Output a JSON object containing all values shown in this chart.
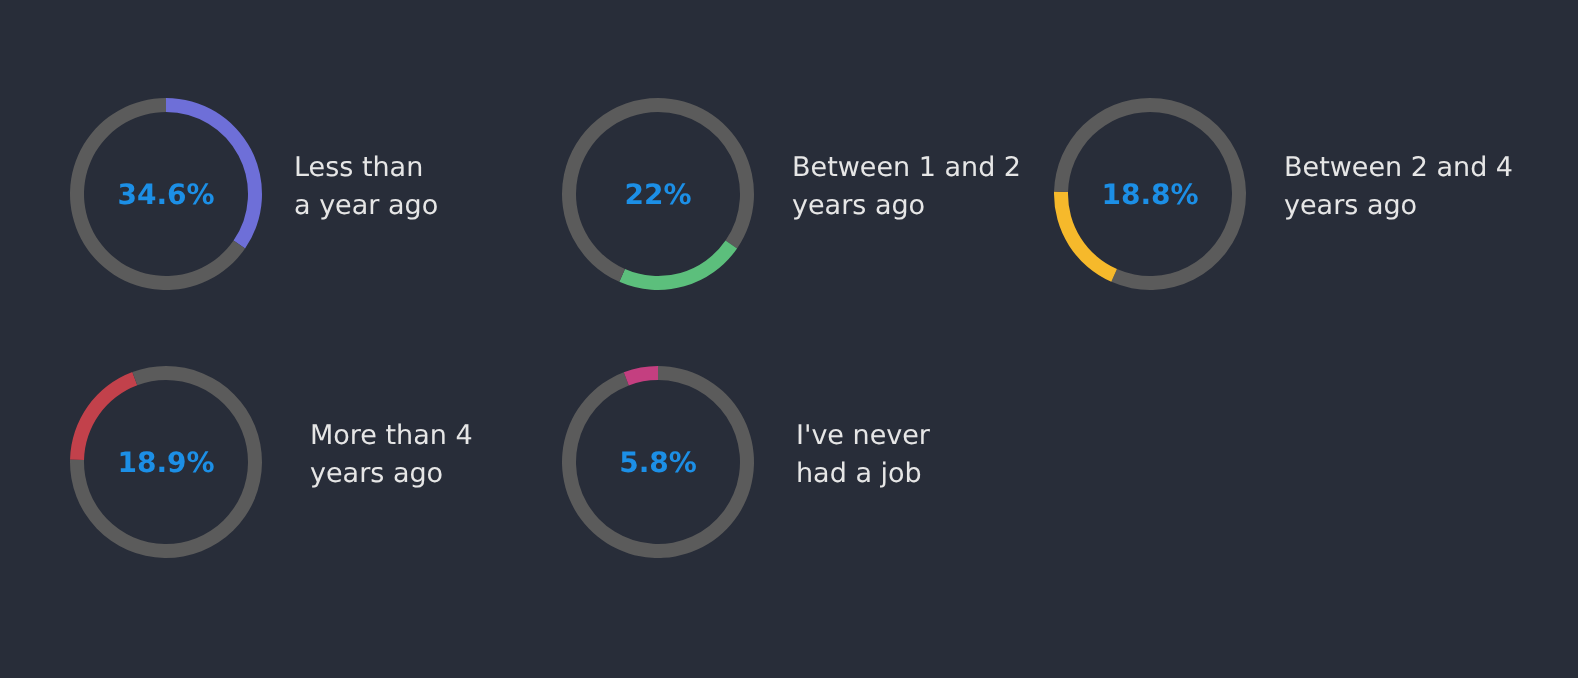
{
  "chart_data": [
    {
      "type": "donut",
      "title": "Less than\na year ago",
      "categories": [
        null,
        null
      ],
      "values": [
        34.6,
        65.4
      ],
      "colors": [
        "#6e6fd8",
        "#5b5b5b"
      ],
      "annotations": [
        "34.6%"
      ]
    },
    {
      "type": "donut",
      "title": "Between 1 and 2\nyears ago",
      "categories": [
        null,
        null,
        null
      ],
      "values": [
        34.6,
        22,
        43.4
      ],
      "colors": [
        "#5b5b5b",
        "#5cbf7c",
        "#5b5b5b"
      ],
      "annotations": [
        "22%"
      ]
    },
    {
      "type": "donut",
      "title": "Between 2 and 4\nyears ago",
      "categories": [
        null,
        null,
        null
      ],
      "values": [
        56.6,
        18.8,
        24.6
      ],
      "colors": [
        "#5b5b5b",
        "#f6b92b",
        "#5b5b5b"
      ],
      "annotations": [
        "18.8%"
      ]
    },
    {
      "type": "donut",
      "title": "More than 4\nyears ago",
      "categories": [
        null,
        null,
        null
      ],
      "values": [
        75.4,
        18.9,
        5.7
      ],
      "colors": [
        "#5b5b5b",
        "#c2414b",
        "#5b5b5b"
      ],
      "annotations": [
        "18.9%"
      ]
    },
    {
      "type": "donut",
      "title": "I've never\nhad a job",
      "categories": [
        null,
        null
      ],
      "values": [
        94.2,
        5.8
      ],
      "colors": [
        "#5b5b5b",
        "#c43f80"
      ],
      "annotations": [
        "5.8%"
      ]
    }
  ]
}
